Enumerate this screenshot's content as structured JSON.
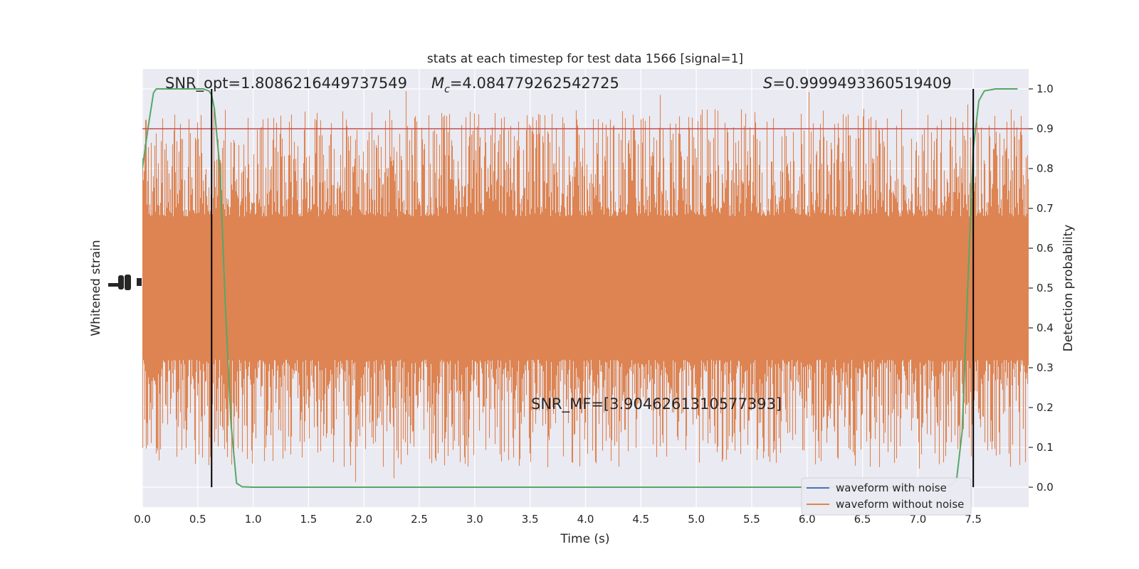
{
  "chart_data": {
    "type": "line",
    "title": "stats at each timestep for test data 1566 [signal=1]",
    "xlabel": "Time (s)",
    "ylabel_left": "Whitened strain",
    "ylabel_right": "Detection probability",
    "xlim": [
      0.0,
      8.0
    ],
    "ylim_right": [
      -0.05,
      1.05
    ],
    "x_ticks": [
      "0.0",
      "0.5",
      "1.0",
      "1.5",
      "2.0",
      "2.5",
      "3.0",
      "3.5",
      "4.0",
      "4.5",
      "5.0",
      "5.5",
      "6.0",
      "6.5",
      "7.0",
      "7.5"
    ],
    "x_tick_values": [
      0.0,
      0.5,
      1.0,
      1.5,
      2.0,
      2.5,
      3.0,
      3.5,
      4.0,
      4.5,
      5.0,
      5.5,
      6.0,
      6.5,
      7.0,
      7.5
    ],
    "y_right_ticks": [
      "0.0",
      "0.1",
      "0.2",
      "0.3",
      "0.4",
      "0.5",
      "0.6",
      "0.7",
      "0.8",
      "0.9",
      "1.0"
    ],
    "y_right_tick_values": [
      0.0,
      0.1,
      0.2,
      0.3,
      0.4,
      0.5,
      0.6,
      0.7,
      0.8,
      0.9,
      1.0
    ],
    "threshold": 0.9,
    "vlines_x": [
      0.625,
      7.5
    ],
    "annotations": {
      "snr_opt": "SNR_opt=1.8086216449737549",
      "mc_symbol": "M",
      "mc_sub": "c",
      "mc_value": "=4.084779262542725",
      "s_symbol": "S",
      "s_value": "=0.9999493360519409",
      "snr_mf": "SNR_MF=[3.9046261310577393]"
    },
    "legend": [
      "waveform with noise",
      "waveform without noise"
    ],
    "series": [
      {
        "name": "waveform without noise",
        "kind": "noise-band",
        "center": 0.5,
        "core_halfwidth": 0.16,
        "peak_max": 1.0,
        "trough_min": 0.0
      },
      {
        "name": "detection probability",
        "x": [
          0.0,
          0.05,
          0.1,
          0.125,
          0.2,
          0.3,
          0.4,
          0.5,
          0.55,
          0.6,
          0.625,
          0.65,
          0.7,
          0.75,
          0.8,
          0.85,
          0.9,
          1.0,
          1.5,
          2.0,
          2.5,
          3.0,
          3.5,
          4.0,
          4.5,
          5.0,
          5.5,
          6.0,
          6.5,
          7.0,
          7.2,
          7.3,
          7.35,
          7.4,
          7.45,
          7.5,
          7.55,
          7.6,
          7.7,
          7.8,
          7.9
        ],
        "y": [
          0.8,
          0.9,
          0.99,
          1.0,
          1.0,
          1.0,
          1.0,
          1.0,
          1.0,
          0.995,
          0.985,
          0.95,
          0.8,
          0.45,
          0.16,
          0.01,
          0.001,
          0.0,
          0.0,
          0.0,
          0.0,
          0.0,
          0.0,
          0.0,
          0.0,
          0.0,
          0.0,
          0.0,
          0.0,
          0.0,
          0.0,
          0.005,
          0.02,
          0.14,
          0.5,
          0.85,
          0.97,
          0.995,
          1.0,
          1.0,
          1.0
        ]
      }
    ],
    "colors": {
      "background": "#eaeaf2",
      "grid": "#ffffff",
      "noise": "#dd8452",
      "prob": "#55a868",
      "threshold": "#c44e52",
      "vline": "#000000",
      "noise_legend": "#4c72b0"
    }
  }
}
